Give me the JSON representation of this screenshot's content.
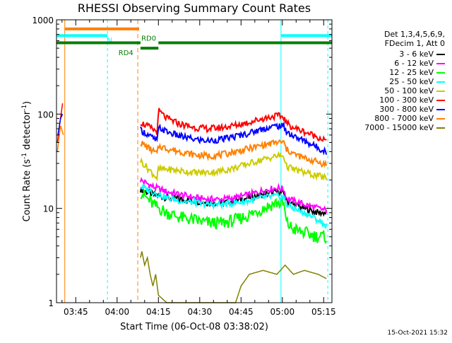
{
  "chart_data": {
    "type": "line",
    "title": "RHESSI Observing Summary Count Rates",
    "xlabel": "Start Time (06-Oct-08 03:38:02)",
    "ylabel": "Count Rate (s",
    "ylabel_sup1": "-1",
    "ylabel_mid": " detector",
    "ylabel_sup2": "-1",
    "ylabel_end": ")",
    "y_scale": "log",
    "ylim": [
      1,
      1000
    ],
    "xlim_minutes": [
      0,
      100
    ],
    "x_ticks": [
      {
        "label": "03:45",
        "min": 7
      },
      {
        "label": "04:00",
        "min": 22
      },
      {
        "label": "04:15",
        "min": 37
      },
      {
        "label": "04:30",
        "min": 52
      },
      {
        "label": "04:45",
        "min": 67
      },
      {
        "label": "05:00",
        "min": 82
      },
      {
        "label": "05:15",
        "min": 97
      }
    ],
    "y_ticks": [
      {
        "label": "1",
        "value": 1
      },
      {
        "label": "10",
        "value": 10
      },
      {
        "label": "100",
        "value": 100
      },
      {
        "label": "1000",
        "value": 1000
      }
    ],
    "legend_header": [
      "Det 1,3,4,5,6,9,",
      "FDecim 1, Att 0"
    ],
    "series": [
      {
        "name": "3 - 6 keV",
        "color": "#000000",
        "x": [
          30.5,
          35,
          40,
          45,
          50,
          55,
          60,
          65,
          70,
          75,
          80,
          82.5,
          83.5,
          86,
          90,
          95,
          98
        ],
        "y": [
          16,
          14,
          13,
          12.5,
          12,
          11.5,
          11.5,
          12,
          13,
          14,
          15,
          14.5,
          12,
          11,
          10,
          9,
          9
        ]
      },
      {
        "name": "6 - 12 keV",
        "color": "#ff00ff",
        "x": [
          30.5,
          35,
          40,
          45,
          50,
          55,
          60,
          65,
          70,
          75,
          80,
          82.5,
          83.5,
          86,
          90,
          95,
          98
        ],
        "y": [
          20,
          17,
          15,
          14,
          13,
          12.5,
          12.5,
          13,
          14,
          15.5,
          16.5,
          16,
          13,
          12,
          11,
          10,
          9.5
        ]
      },
      {
        "name": "12 - 25 keV",
        "color": "#00ff00",
        "x": [
          30.5,
          35,
          40,
          45,
          50,
          55,
          60,
          65,
          70,
          75,
          80,
          82.5,
          83.5,
          86,
          90,
          95,
          98
        ],
        "y": [
          15,
          11,
          9,
          8,
          7.5,
          7,
          7,
          7.5,
          8.5,
          10,
          11.5,
          11,
          7,
          6,
          5.5,
          5,
          5
        ]
      },
      {
        "name": "25 - 50 keV",
        "color": "#00ffff",
        "x": [
          30.5,
          35,
          40,
          45,
          50,
          55,
          60,
          65,
          70,
          75,
          80,
          82.5,
          83.5,
          86,
          90,
          95,
          98
        ],
        "y": [
          17,
          15,
          13,
          12,
          11.5,
          11,
          11,
          11.5,
          12,
          13,
          13.5,
          13,
          11,
          10,
          9,
          7.5,
          6.5
        ]
      },
      {
        "name": "50 - 100 keV",
        "color": "#cccc00",
        "x": [
          30.5,
          36.5,
          37,
          40,
          45,
          50,
          55,
          60,
          65,
          70,
          75,
          80,
          82.5,
          83.5,
          86,
          90,
          95,
          98
        ],
        "y": [
          32,
          21,
          26,
          26,
          25,
          24,
          24,
          25,
          27,
          30,
          33,
          36,
          36,
          28,
          26,
          24,
          22,
          21
        ]
      },
      {
        "name": "100 - 300 keV",
        "color": "#ff0000",
        "x": [
          30.5,
          36.5,
          37.2,
          40,
          45,
          50,
          55,
          60,
          65,
          70,
          75,
          80,
          82.5,
          83.5,
          86,
          90,
          95,
          98
        ],
        "y": [
          82,
          65,
          108,
          90,
          78,
          72,
          70,
          72,
          76,
          82,
          90,
          96,
          93,
          80,
          72,
          65,
          57,
          52
        ]
      },
      {
        "name": "300 - 800 keV",
        "color": "#0000ff",
        "x": [
          30.5,
          36.5,
          37.2,
          40,
          45,
          50,
          55,
          60,
          65,
          70,
          75,
          80,
          82.5,
          83.5,
          86,
          90,
          95,
          98
        ],
        "y": [
          68,
          52,
          72,
          65,
          58,
          54,
          52,
          54,
          58,
          63,
          70,
          75,
          74,
          66,
          58,
          52,
          44,
          40
        ]
      },
      {
        "name": "800 - 7000 keV",
        "color": "#ff8000",
        "x": [
          30.5,
          36.5,
          37.2,
          40,
          45,
          50,
          55,
          60,
          65,
          70,
          75,
          80,
          82.5,
          83.5,
          86,
          90,
          95,
          98
        ],
        "y": [
          50,
          38,
          46,
          43,
          40,
          37,
          36,
          37,
          40,
          43,
          47,
          50,
          50,
          42,
          38,
          34,
          31,
          29
        ]
      },
      {
        "name": "7000 - 15000 keV",
        "color": "#808000",
        "x": [
          30.5,
          31,
          32,
          33,
          34,
          35,
          36,
          37,
          40,
          45,
          50,
          55,
          60,
          65,
          67,
          70,
          75,
          80,
          83,
          86,
          90,
          95,
          98
        ],
        "y": [
          3,
          3.5,
          2.5,
          3,
          2,
          1.5,
          2,
          1.2,
          1,
          1,
          1,
          1,
          1,
          1,
          1.5,
          2,
          2.2,
          2,
          2.5,
          2,
          2.2,
          2,
          1.8
        ]
      }
    ],
    "early_spikes": [
      {
        "color": "#ff0000",
        "x": [
          0.3,
          1.2,
          2.2
        ],
        "y": [
          50,
          80,
          130
        ]
      },
      {
        "color": "#ff8000",
        "x": [
          0.3,
          1.5,
          2.5
        ],
        "y": [
          40,
          75,
          60
        ]
      },
      {
        "color": "#0000ff",
        "x": [
          0.5,
          1.5,
          2.2
        ],
        "y": [
          60,
          90,
          100
        ]
      }
    ],
    "flags": [
      {
        "label": "",
        "color": "#ff8000",
        "x": [
          3,
          30
        ],
        "y": 800
      },
      {
        "label": "N",
        "color": "#00ffff",
        "x": [
          0,
          18.5
        ],
        "y": 680,
        "label_min": 18.3
      },
      {
        "label": "",
        "color": "#00ffff",
        "x": [
          81.5,
          100
        ],
        "y": 680
      },
      {
        "label": "RD0",
        "color": "#008000",
        "x": [
          0,
          30.5
        ],
        "y": 570,
        "label_min": 30.8
      },
      {
        "label": "",
        "color": "#008000",
        "x": [
          37,
          100
        ],
        "y": 570
      },
      {
        "label": "RD4",
        "color": "#008000",
        "x": [
          30.5,
          37
        ],
        "y": 500,
        "label_min": 22.5
      }
    ],
    "vlines": [
      {
        "min": 0,
        "color": "#00ffff",
        "dash": "4,4"
      },
      {
        "min": 3,
        "color": "#ff8000",
        "dash": ""
      },
      {
        "min": 18.5,
        "color": "#00ffff",
        "dash": "4,4"
      },
      {
        "min": 29.5,
        "color": "#ff8000",
        "dash": "6,4"
      },
      {
        "min": 81.5,
        "color": "#00ffff",
        "dash": ""
      },
      {
        "min": 98.5,
        "color": "#00ffff",
        "dash": "4,4"
      }
    ]
  },
  "footer": {
    "date": "15-Oct-2021 15:32"
  }
}
